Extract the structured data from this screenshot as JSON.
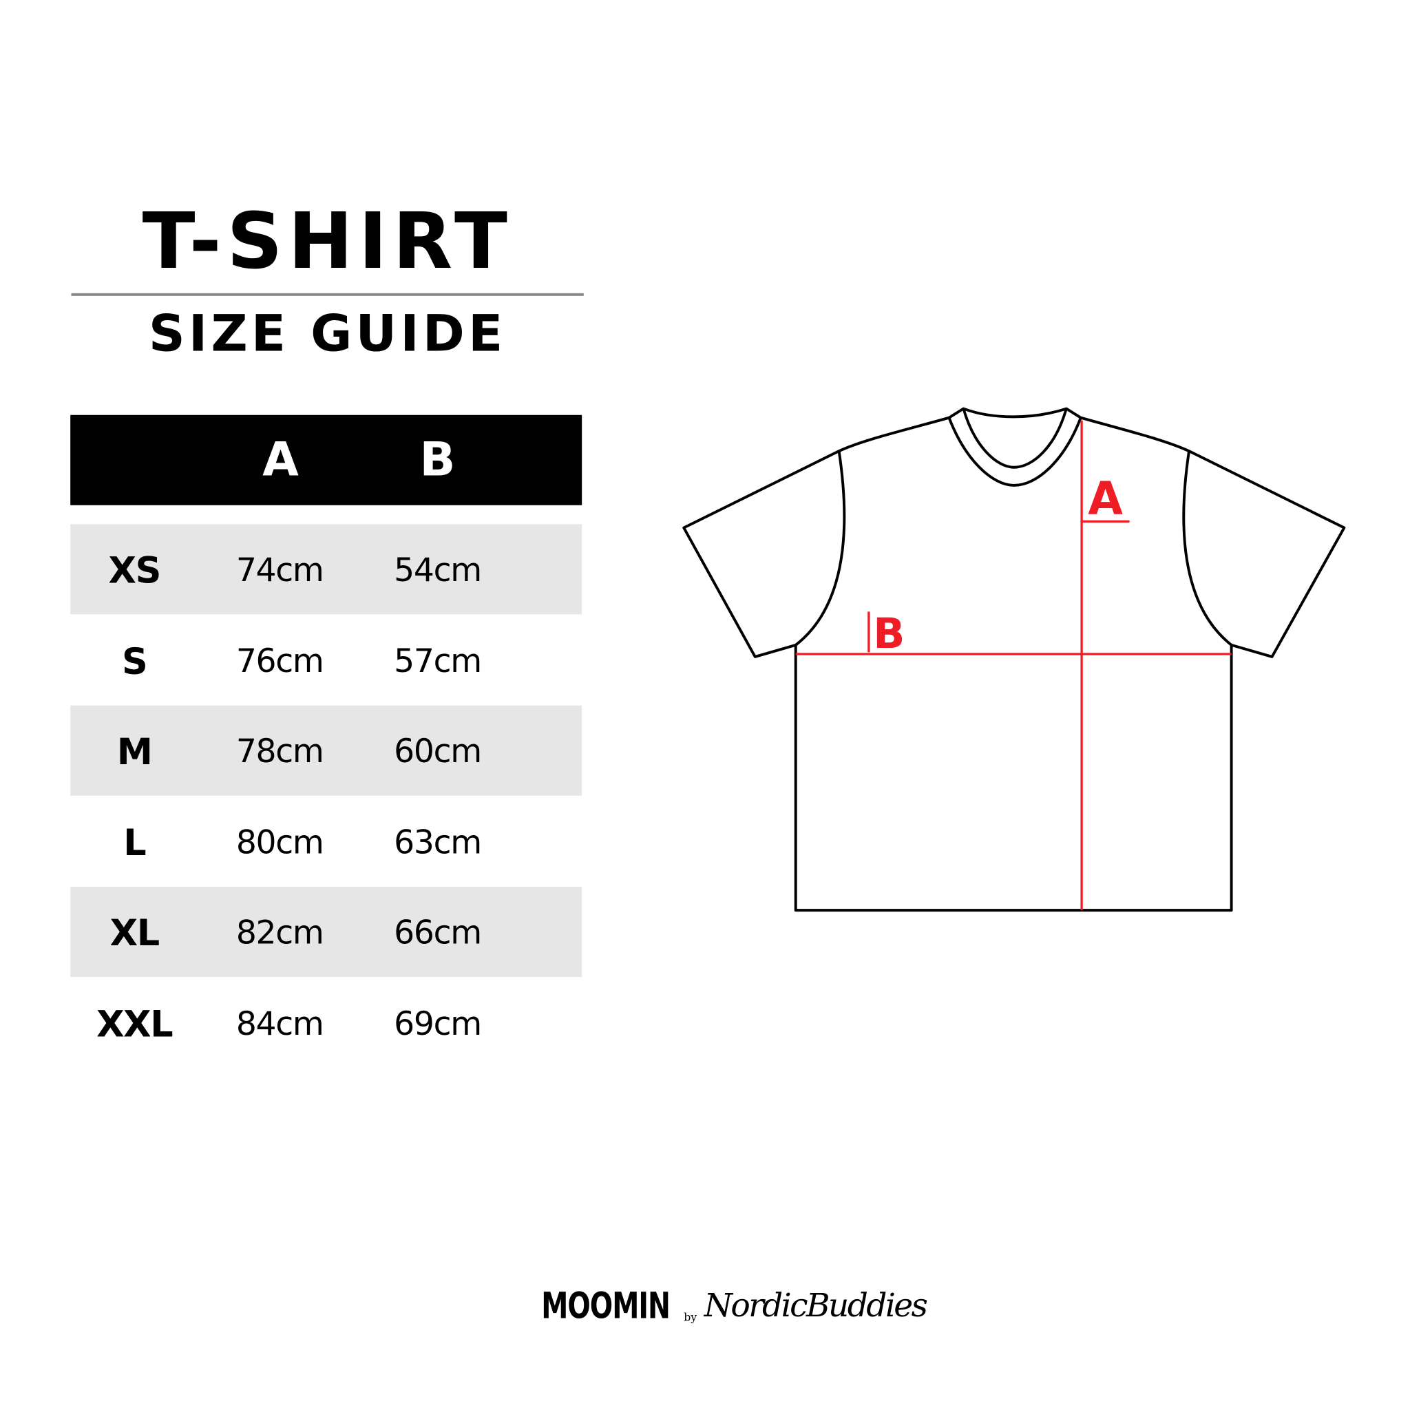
{
  "title": "T-SHIRT",
  "subtitle": "SIZE GUIDE",
  "table": {
    "headers": [
      "",
      "A",
      "B"
    ],
    "rows": [
      {
        "size": "XS",
        "a": "74cm",
        "b": "54cm"
      },
      {
        "size": "S",
        "a": "76cm",
        "b": "57cm"
      },
      {
        "size": "M",
        "a": "78cm",
        "b": "60cm"
      },
      {
        "size": "L",
        "a": "80cm",
        "b": "63cm"
      },
      {
        "size": "XL",
        "a": "82cm",
        "b": "66cm"
      },
      {
        "size": "XXL",
        "a": "84cm",
        "b": "69cm"
      }
    ]
  },
  "diagram": {
    "label_a": "A",
    "label_b": "B",
    "measure_color": "#ee1c25"
  },
  "footer": {
    "brand": "MOOMIN",
    "by": "by",
    "partner": "NordicBuddies"
  }
}
